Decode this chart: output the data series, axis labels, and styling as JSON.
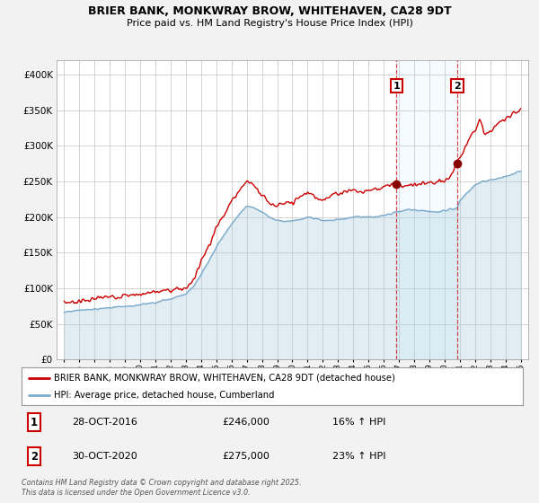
{
  "title_line1": "BRIER BANK, MONKWRAY BROW, WHITEHAVEN, CA28 9DT",
  "title_line2": "Price paid vs. HM Land Registry's House Price Index (HPI)",
  "legend_label1": "BRIER BANK, MONKWRAY BROW, WHITEHAVEN, CA28 9DT (detached house)",
  "legend_label2": "HPI: Average price, detached house, Cumberland",
  "marker1_date": "28-OCT-2016",
  "marker1_price": "£246,000",
  "marker1_hpi": "16% ↑ HPI",
  "marker2_date": "30-OCT-2020",
  "marker2_price": "£275,000",
  "marker2_hpi": "23% ↑ HPI",
  "footer": "Contains HM Land Registry data © Crown copyright and database right 2025.\nThis data is licensed under the Open Government Licence v3.0.",
  "red_line_color": "#cc0000",
  "blue_line_color": "#7aaacc",
  "blue_fill_color": "#aaccdd",
  "background_color": "#f2f2f2",
  "plot_bg_color": "#ffffff",
  "grid_color": "#cccccc",
  "ylim": [
    0,
    420000
  ],
  "yticks": [
    0,
    50000,
    100000,
    150000,
    200000,
    250000,
    300000,
    350000,
    400000
  ],
  "xlim_start": 1994.5,
  "xlim_end": 2025.5,
  "marker1_x": 2016.83,
  "marker1_y": 246000,
  "marker2_x": 2020.83,
  "marker2_y": 275000,
  "vline1_x": 2016.83,
  "vline2_x": 2020.83
}
